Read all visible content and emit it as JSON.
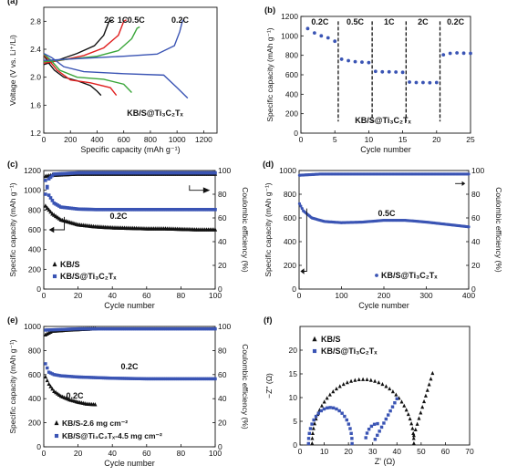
{
  "colors": {
    "black": "#111111",
    "blue": "#3a54b4",
    "red": "#e02020",
    "green": "#3aa63a",
    "orange": "#f08c1a",
    "grey": "#444444"
  },
  "chart_data": [
    {
      "id": "a",
      "panel_label": "(a)",
      "type": "line",
      "xlabel": "Specific capacity (mAh g⁻¹)",
      "ylabel": "Voltage (V vs. Li⁺/Li)",
      "xlim": [
        0,
        1300
      ],
      "ylim": [
        1.2,
        3.0
      ],
      "xticks": [
        "0",
        "200",
        "400",
        "600",
        "800",
        "1000",
        "1200"
      ],
      "yticks": [
        "1.2",
        "1.6",
        "2.0",
        "2.4",
        "2.8"
      ],
      "annotation": "KB/S@Ti₃C₂Tₓ",
      "series": [
        {
          "name": "2C",
          "color": "#111111",
          "discharge": [
            [
              0,
              2.32
            ],
            [
              30,
              2.22
            ],
            [
              80,
              2.1
            ],
            [
              150,
              2.0
            ],
            [
              250,
              1.95
            ],
            [
              350,
              1.88
            ],
            [
              400,
              1.8
            ],
            [
              430,
              1.74
            ]
          ],
          "charge": [
            [
              0,
              2.18
            ],
            [
              100,
              2.24
            ],
            [
              250,
              2.34
            ],
            [
              380,
              2.45
            ],
            [
              450,
              2.6
            ],
            [
              490,
              2.8
            ],
            [
              520,
              2.82
            ]
          ]
        },
        {
          "name": "1C",
          "color": "#e02020",
          "discharge": [
            [
              0,
              2.32
            ],
            [
              40,
              2.24
            ],
            [
              100,
              2.1
            ],
            [
              200,
              1.96
            ],
            [
              350,
              1.92
            ],
            [
              500,
              1.85
            ],
            [
              545,
              1.74
            ]
          ],
          "charge": [
            [
              0,
              2.2
            ],
            [
              150,
              2.25
            ],
            [
              300,
              2.31
            ],
            [
              450,
              2.42
            ],
            [
              560,
              2.6
            ],
            [
              600,
              2.8
            ],
            [
              620,
              2.82
            ]
          ]
        },
        {
          "name": "0.5C",
          "color": "#3aa63a",
          "discharge": [
            [
              0,
              2.33
            ],
            [
              50,
              2.25
            ],
            [
              120,
              2.1
            ],
            [
              250,
              2.0
            ],
            [
              450,
              1.97
            ],
            [
              600,
              1.9
            ],
            [
              660,
              1.78
            ]
          ],
          "charge": [
            [
              0,
              2.22
            ],
            [
              200,
              2.26
            ],
            [
              400,
              2.3
            ],
            [
              560,
              2.38
            ],
            [
              660,
              2.55
            ],
            [
              700,
              2.7
            ],
            [
              720,
              2.72
            ]
          ]
        },
        {
          "name": "0.2C",
          "color": "#3a54b4",
          "discharge": [
            [
              0,
              2.34
            ],
            [
              60,
              2.28
            ],
            [
              150,
              2.15
            ],
            [
              300,
              2.08
            ],
            [
              600,
              2.05
            ],
            [
              900,
              2.03
            ],
            [
              1000,
              1.85
            ],
            [
              1080,
              1.7
            ]
          ],
          "charge": [
            [
              0,
              2.24
            ],
            [
              300,
              2.27
            ],
            [
              600,
              2.3
            ],
            [
              850,
              2.33
            ],
            [
              980,
              2.45
            ],
            [
              1020,
              2.65
            ],
            [
              1040,
              2.8
            ],
            [
              1050,
              2.82
            ]
          ]
        }
      ]
    },
    {
      "id": "b",
      "panel_label": "(b)",
      "type": "scatter",
      "xlabel": "Cycle number",
      "ylabel": "Specific capacity (mAh g⁻¹)",
      "xlim": [
        0,
        25
      ],
      "ylim": [
        0,
        1200
      ],
      "xticks": [
        "0",
        "5",
        "10",
        "15",
        "20",
        "25"
      ],
      "yticks": [
        "0",
        "200",
        "400",
        "600",
        "800",
        "1000",
        "1200"
      ],
      "annotation": "KB/S@Ti₃C₂Tₓ",
      "rate_labels": [
        "0.2C",
        "0.5C",
        "1C",
        "2C",
        "0.2C"
      ],
      "dividers": [
        5.5,
        10.5,
        15.5,
        20.5
      ],
      "x": [
        1,
        2,
        3,
        4,
        5,
        6,
        7,
        8,
        9,
        10,
        11,
        12,
        13,
        14,
        15,
        16,
        17,
        18,
        19,
        20,
        21,
        22,
        23,
        24,
        25
      ],
      "values": [
        1075,
        1030,
        1000,
        980,
        945,
        760,
        745,
        735,
        730,
        725,
        635,
        630,
        630,
        628,
        625,
        525,
        520,
        520,
        518,
        520,
        805,
        820,
        825,
        822,
        820
      ],
      "series_color": "#3a54b4"
    },
    {
      "id": "c",
      "panel_label": "(c)",
      "type": "scatter",
      "xlabel": "Cycle number",
      "ylabel": "Specific capacity (mAh g⁻¹)",
      "y2label": "Coulombic efficiency (%)",
      "xlim": [
        0,
        100
      ],
      "ylim": [
        0,
        1200
      ],
      "y2lim": [
        0,
        100
      ],
      "xticks": [
        "0",
        "20",
        "40",
        "60",
        "80",
        "100"
      ],
      "yticks": [
        "0",
        "200",
        "400",
        "600",
        "800",
        "1000",
        "1200"
      ],
      "y2ticks": [
        "0",
        "20",
        "40",
        "60",
        "80",
        "100"
      ],
      "rate_label": "0.2C",
      "legend": [
        {
          "name": "KB/S",
          "marker": "triangle"
        },
        {
          "name": "KB/S@Ti₃C₂Tₓ",
          "marker": "square"
        }
      ],
      "capacity": {
        "KB/S": [
          [
            1,
            840
          ],
          [
            5,
            760
          ],
          [
            10,
            700
          ],
          [
            20,
            650
          ],
          [
            30,
            630
          ],
          [
            40,
            620
          ],
          [
            50,
            615
          ],
          [
            60,
            610
          ],
          [
            70,
            610
          ],
          [
            80,
            605
          ],
          [
            90,
            600
          ],
          [
            100,
            600
          ]
        ],
        "KB/S@Ti₃C₂Tₓ": [
          [
            1,
            1100
          ],
          [
            3,
            950
          ],
          [
            6,
            870
          ],
          [
            10,
            830
          ],
          [
            20,
            810
          ],
          [
            30,
            805
          ],
          [
            40,
            805
          ],
          [
            50,
            805
          ],
          [
            60,
            805
          ],
          [
            70,
            805
          ],
          [
            80,
            805
          ],
          [
            90,
            805
          ],
          [
            100,
            805
          ]
        ]
      },
      "efficiency": {
        "KB/S": [
          [
            1,
            95
          ],
          [
            5,
            96
          ],
          [
            20,
            97
          ],
          [
            50,
            97
          ],
          [
            100,
            97
          ]
        ],
        "KB/S@Ti₃C₂Tₓ": [
          [
            1,
            80
          ],
          [
            3,
            93
          ],
          [
            6,
            97
          ],
          [
            20,
            98
          ],
          [
            50,
            98
          ],
          [
            100,
            98
          ]
        ]
      }
    },
    {
      "id": "d",
      "panel_label": "(d)",
      "type": "scatter",
      "xlabel": "Cycle number",
      "ylabel": "Specific capacity (mAh g⁻¹)",
      "y2label": "Coulombic efficiency (%)",
      "xlim": [
        0,
        400
      ],
      "ylim": [
        0,
        1000
      ],
      "y2lim": [
        0,
        100
      ],
      "xticks": [
        "0",
        "100",
        "200",
        "300",
        "400"
      ],
      "yticks": [
        "0",
        "200",
        "400",
        "600",
        "800",
        "1000"
      ],
      "y2ticks": [
        "0",
        "20",
        "40",
        "60",
        "80",
        "100"
      ],
      "rate_label": "0.5C",
      "legend": [
        {
          "name": "KB/S@Ti₃C₂Tₓ",
          "marker": "circle"
        }
      ],
      "capacity": {
        "KB/S@Ti₃C₂Tₓ": [
          [
            1,
            720
          ],
          [
            10,
            660
          ],
          [
            30,
            600
          ],
          [
            60,
            570
          ],
          [
            100,
            560
          ],
          [
            150,
            565
          ],
          [
            200,
            580
          ],
          [
            250,
            580
          ],
          [
            300,
            565
          ],
          [
            350,
            545
          ],
          [
            400,
            525
          ]
        ]
      },
      "efficiency": {
        "KB/S@Ti₃C₂Tₓ": [
          [
            1,
            96
          ],
          [
            50,
            97
          ],
          [
            100,
            97
          ],
          [
            200,
            97
          ],
          [
            300,
            97
          ],
          [
            400,
            97
          ]
        ]
      }
    },
    {
      "id": "e",
      "panel_label": "(e)",
      "type": "scatter",
      "xlabel": "Cycle number",
      "ylabel": "Specific capacity (mAh g⁻¹)",
      "y2label": "Coulombic efficiency (%)",
      "xlim": [
        0,
        100
      ],
      "ylim": [
        0,
        1000
      ],
      "y2lim": [
        0,
        100
      ],
      "xticks": [
        "0",
        "20",
        "40",
        "60",
        "80",
        "100"
      ],
      "yticks": [
        "0",
        "200",
        "400",
        "600",
        "800",
        "1000"
      ],
      "y2ticks": [
        "0",
        "20",
        "40",
        "60",
        "80",
        "100"
      ],
      "rate_labels": [
        "0.2C",
        "0.2C"
      ],
      "legend": [
        {
          "name": "KB/S-2.6 mg cm⁻²",
          "marker": "triangle"
        },
        {
          "name": "KB/S@Ti₃C₂Tₓ-4.5 mg cm⁻²",
          "marker": "square"
        }
      ],
      "capacity": {
        "KB/S-2.6 mg cm⁻²": [
          [
            1,
            580
          ],
          [
            3,
            520
          ],
          [
            6,
            460
          ],
          [
            10,
            420
          ],
          [
            15,
            390
          ],
          [
            20,
            370
          ],
          [
            25,
            355
          ],
          [
            30,
            350
          ]
        ],
        "KB/S@Ti₃C₂Tₓ-4.5 mg cm⁻²": [
          [
            1,
            690
          ],
          [
            3,
            620
          ],
          [
            6,
            600
          ],
          [
            10,
            590
          ],
          [
            20,
            580
          ],
          [
            40,
            570
          ],
          [
            60,
            565
          ],
          [
            80,
            565
          ],
          [
            100,
            565
          ]
        ]
      },
      "efficiency": {
        "KB/S-2.6 mg cm⁻²": [
          [
            1,
            93
          ],
          [
            5,
            96
          ],
          [
            15,
            97
          ],
          [
            30,
            98
          ]
        ],
        "KB/S@Ti₃C₂Tₓ-4.5 mg cm⁻²": [
          [
            1,
            97
          ],
          [
            20,
            98
          ],
          [
            60,
            98
          ],
          [
            100,
            98
          ]
        ]
      }
    },
    {
      "id": "f",
      "panel_label": "(f)",
      "type": "scatter",
      "xlabel": "Z' (Ω)",
      "ylabel": "−Z'' (Ω)",
      "xlim": [
        0,
        70
      ],
      "ylim": [
        0,
        25
      ],
      "xticks": [
        "0",
        "10",
        "20",
        "30",
        "40",
        "50",
        "60",
        "70"
      ],
      "yticks": [
        "0",
        "5",
        "10",
        "15",
        "20"
      ],
      "legend": [
        {
          "name": "KB/S",
          "marker": "triangle"
        },
        {
          "name": "KB/S@Ti₃C₂Tₓ",
          "marker": "square"
        }
      ]
    }
  ]
}
